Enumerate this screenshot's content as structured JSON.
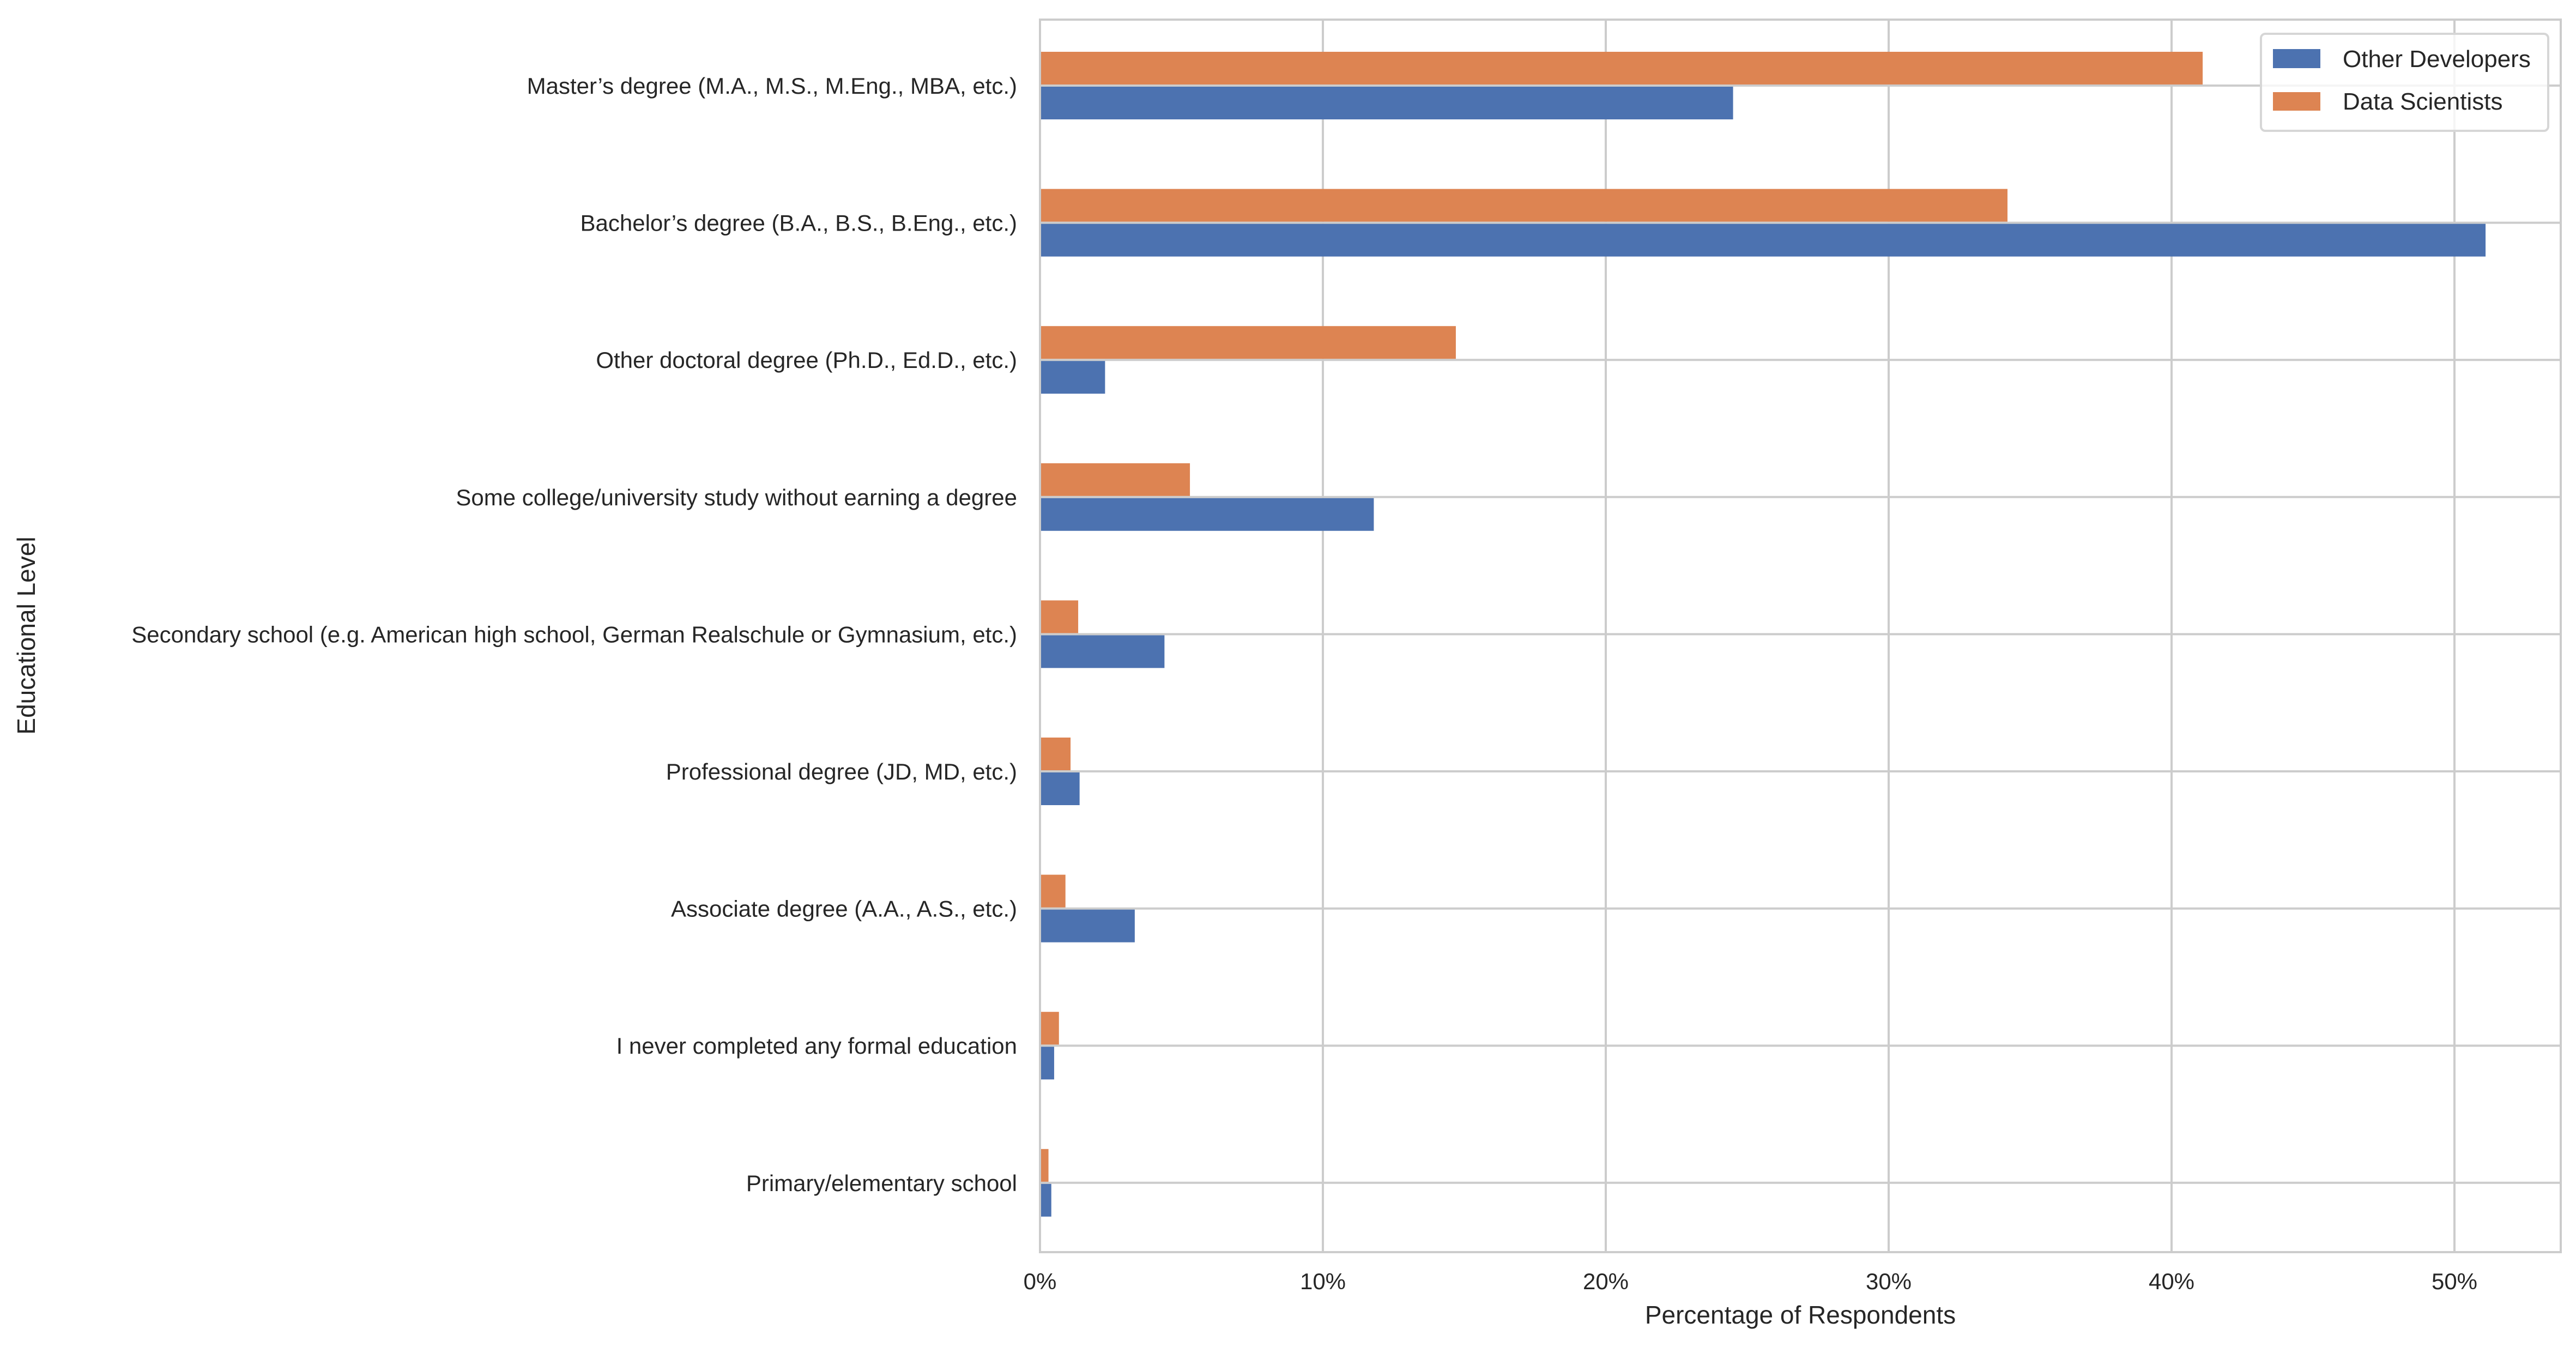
{
  "chart_data": {
    "type": "bar",
    "orientation": "horizontal",
    "title": "",
    "xlabel": "Percentage of Respondents",
    "ylabel": "Educational Level",
    "xlim": [
      0,
      53.5
    ],
    "x_ticks": [
      0,
      10,
      20,
      30,
      40,
      50
    ],
    "x_tick_labels": [
      "0%",
      "10%",
      "20%",
      "30%",
      "40%",
      "50%"
    ],
    "grid": true,
    "legend_position": "top-right",
    "categories": [
      "Master’s degree (M.A., M.S., M.Eng., MBA, etc.)",
      "Bachelor’s degree (B.A., B.S., B.Eng., etc.)",
      "Other doctoral degree (Ph.D., Ed.D., etc.)",
      "Some college/university study without earning a degree",
      "Secondary school (e.g. American high school, German Realschule or Gymnasium, etc.)",
      "Professional degree (JD, MD, etc.)",
      "Associate degree (A.A., A.S., etc.)",
      "I never completed any formal education",
      "Primary/elementary school"
    ],
    "series": [
      {
        "name": "Other Developers",
        "color": "#4c72b0",
        "values": [
          24.5,
          51.1,
          2.3,
          11.8,
          4.4,
          1.4,
          3.35,
          0.5,
          0.4
        ]
      },
      {
        "name": "Data Scientists",
        "color": "#dd8452",
        "values": [
          41.1,
          34.2,
          14.7,
          5.3,
          1.35,
          1.08,
          0.9,
          0.67,
          0.3
        ]
      }
    ]
  }
}
